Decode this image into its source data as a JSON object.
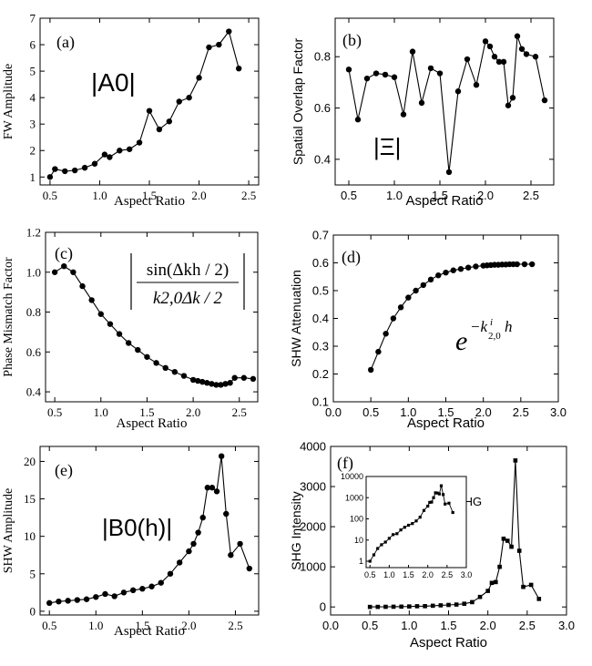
{
  "chart_data": [
    {
      "type": "line",
      "panel_label": "(a)",
      "annotation": "|A0|",
      "xlabel": "Aspect Ratio",
      "ylabel": "FW Amplitude",
      "xlim": [
        0.4,
        2.6
      ],
      "ylim": [
        0.7,
        7
      ],
      "xticks": [
        0.5,
        1.0,
        1.5,
        2.0,
        2.5
      ],
      "xtick_labels": [
        "0.5",
        "1.0",
        "1.5",
        "2.0",
        "2.5"
      ],
      "yticks": [
        1,
        2,
        3,
        4,
        5,
        6,
        7
      ],
      "ytick_labels": [
        "1",
        "2",
        "3",
        "4",
        "5",
        "6",
        "7"
      ],
      "marker": "circle",
      "series": [
        {
          "x": [
            0.5,
            0.55,
            0.65,
            0.75,
            0.85,
            0.95,
            1.05,
            1.1,
            1.2,
            1.3,
            1.4,
            1.5,
            1.6,
            1.7,
            1.8,
            1.9,
            2.0,
            2.1,
            2.2,
            2.3,
            2.4
          ],
          "y": [
            1.0,
            1.3,
            1.22,
            1.25,
            1.35,
            1.5,
            1.85,
            1.75,
            2.0,
            2.05,
            2.3,
            3.5,
            2.8,
            3.1,
            3.85,
            4.0,
            4.75,
            5.9,
            6.0,
            6.5,
            5.1
          ]
        }
      ]
    },
    {
      "type": "line",
      "panel_label": "(b)",
      "annotation": "|Ξ|",
      "xlabel": "Aspect Ratio",
      "ylabel": "Spatial Overlap Factor",
      "xlim": [
        0.35,
        2.75
      ],
      "ylim": [
        0.3,
        0.95
      ],
      "xticks": [
        0.5,
        1.0,
        1.5,
        2.0,
        2.5
      ],
      "xtick_labels": [
        "0.5",
        "1.0",
        "1.5",
        "2.0",
        "2.5"
      ],
      "yticks": [
        0.4,
        0.6,
        0.8
      ],
      "ytick_labels": [
        "0.4",
        "0.6",
        "0.8"
      ],
      "marker": "circle",
      "series": [
        {
          "x": [
            0.5,
            0.6,
            0.7,
            0.8,
            0.9,
            1.0,
            1.1,
            1.2,
            1.3,
            1.4,
            1.5,
            1.6,
            1.7,
            1.8,
            1.9,
            2.0,
            2.05,
            2.1,
            2.15,
            2.2,
            2.25,
            2.3,
            2.35,
            2.4,
            2.45,
            2.55,
            2.65
          ],
          "y": [
            0.75,
            0.555,
            0.715,
            0.735,
            0.73,
            0.72,
            0.575,
            0.82,
            0.62,
            0.755,
            0.735,
            0.35,
            0.665,
            0.79,
            0.69,
            0.86,
            0.84,
            0.8,
            0.78,
            0.78,
            0.61,
            0.64,
            0.88,
            0.83,
            0.81,
            0.8,
            0.63
          ]
        }
      ]
    },
    {
      "type": "line",
      "panel_label": "(c)",
      "annotation": "|sin(Δkh/2) / (k2,0Δk/2)|",
      "annotation_numerator": "sin(Δkh / 2)",
      "annotation_denominator": "k2,0Δk / 2",
      "xlabel": "Aspect Ratio",
      "ylabel": "Phase Mismatch Factor",
      "xlim": [
        0.4,
        2.7
      ],
      "ylim": [
        0.35,
        1.2
      ],
      "xticks": [
        0.5,
        1.0,
        1.5,
        2.0,
        2.5
      ],
      "xtick_labels": [
        "0.5",
        "1.0",
        "1.5",
        "2.0",
        "2.5"
      ],
      "yticks": [
        0.4,
        0.6,
        0.8,
        1.0,
        1.2
      ],
      "ytick_labels": [
        "0.4",
        "0.6",
        "0.8",
        "1.0",
        "1.2"
      ],
      "marker": "circle",
      "series": [
        {
          "x": [
            0.5,
            0.6,
            0.7,
            0.8,
            0.9,
            1.0,
            1.1,
            1.2,
            1.3,
            1.4,
            1.5,
            1.6,
            1.7,
            1.8,
            1.9,
            2.0,
            2.05,
            2.1,
            2.15,
            2.2,
            2.25,
            2.3,
            2.35,
            2.4,
            2.45,
            2.55,
            2.65
          ],
          "y": [
            1.0,
            1.03,
            1.0,
            0.93,
            0.86,
            0.79,
            0.74,
            0.69,
            0.645,
            0.61,
            0.575,
            0.545,
            0.52,
            0.5,
            0.48,
            0.46,
            0.455,
            0.45,
            0.445,
            0.44,
            0.435,
            0.435,
            0.44,
            0.445,
            0.47,
            0.47,
            0.465
          ]
        }
      ]
    },
    {
      "type": "line",
      "panel_label": "(d)",
      "annotation": "e^(-k^i_2,0 h)",
      "xlabel": "Aspect Ratio",
      "ylabel": "SHW Attenuation",
      "xlim": [
        0.0,
        3.0
      ],
      "ylim": [
        0.1,
        0.7
      ],
      "xticks": [
        0.0,
        0.5,
        1.0,
        1.5,
        2.0,
        2.5,
        3.0
      ],
      "xtick_labels": [
        "0.0",
        "0.5",
        "1.0",
        "1.5",
        "2.0",
        "2.5",
        "3.0"
      ],
      "yticks": [
        0.1,
        0.2,
        0.3,
        0.4,
        0.5,
        0.6,
        0.7
      ],
      "ytick_labels": [
        "0.1",
        "0.2",
        "0.3",
        "0.4",
        "0.5",
        "0.6",
        "0.7"
      ],
      "marker": "circle",
      "series": [
        {
          "x": [
            0.5,
            0.6,
            0.7,
            0.8,
            0.9,
            1.0,
            1.1,
            1.2,
            1.3,
            1.4,
            1.5,
            1.6,
            1.7,
            1.8,
            1.9,
            2.0,
            2.05,
            2.1,
            2.15,
            2.2,
            2.25,
            2.3,
            2.35,
            2.4,
            2.45,
            2.55,
            2.65
          ],
          "y": [
            0.215,
            0.28,
            0.345,
            0.4,
            0.44,
            0.475,
            0.5,
            0.52,
            0.54,
            0.555,
            0.565,
            0.573,
            0.578,
            0.583,
            0.587,
            0.59,
            0.591,
            0.592,
            0.593,
            0.593,
            0.594,
            0.594,
            0.595,
            0.595,
            0.595,
            0.595,
            0.595
          ]
        }
      ]
    },
    {
      "type": "line",
      "panel_label": "(e)",
      "annotation": "|B0(h)|",
      "xlabel": "Aspect Ratio",
      "ylabel": "SHW Amplitude",
      "xlim": [
        0.4,
        2.75
      ],
      "ylim": [
        -0.5,
        22
      ],
      "xticks": [
        0.5,
        1.0,
        1.5,
        2.0,
        2.5
      ],
      "xtick_labels": [
        "0.5",
        "1.0",
        "1.5",
        "2.0",
        "2.5"
      ],
      "yticks": [
        0,
        5,
        10,
        15,
        20
      ],
      "ytick_labels": [
        "0",
        "5",
        "10",
        "15",
        "20"
      ],
      "marker": "circle",
      "series": [
        {
          "x": [
            0.5,
            0.6,
            0.7,
            0.8,
            0.9,
            1.0,
            1.1,
            1.2,
            1.3,
            1.4,
            1.5,
            1.6,
            1.7,
            1.8,
            1.9,
            2.0,
            2.05,
            2.1,
            2.15,
            2.2,
            2.25,
            2.3,
            2.35,
            2.4,
            2.45,
            2.55,
            2.65
          ],
          "y": [
            1.1,
            1.3,
            1.4,
            1.5,
            1.6,
            1.9,
            2.3,
            2.0,
            2.5,
            2.8,
            3.0,
            3.3,
            3.8,
            5.0,
            6.5,
            8.0,
            9.0,
            10.5,
            12.5,
            16.5,
            16.5,
            16.0,
            20.7,
            13.0,
            7.5,
            9.0,
            5.7
          ]
        }
      ]
    },
    {
      "type": "line",
      "panel_label": "(f)",
      "annotation": "I_SHG",
      "xlabel": "Aspect Ratio",
      "ylabel": "SHG Intensity",
      "xlim": [
        0.0,
        3.0
      ],
      "ylim": [
        -200,
        4000
      ],
      "xticks": [
        0.0,
        0.5,
        1.0,
        1.5,
        2.0,
        2.5,
        3.0
      ],
      "xtick_labels": [
        "0.0",
        "0.5",
        "1.0",
        "1.5",
        "2.0",
        "2.5",
        "3.0"
      ],
      "yticks": [
        0,
        1000,
        2000,
        3000,
        4000
      ],
      "ytick_labels": [
        "0",
        "1000",
        "2000",
        "3000",
        "4000"
      ],
      "marker": "square",
      "series": [
        {
          "x": [
            0.5,
            0.6,
            0.7,
            0.8,
            0.9,
            1.0,
            1.1,
            1.2,
            1.3,
            1.4,
            1.5,
            1.6,
            1.7,
            1.8,
            1.9,
            2.0,
            2.05,
            2.1,
            2.15,
            2.2,
            2.25,
            2.3,
            2.35,
            2.4,
            2.45,
            2.55,
            2.65
          ],
          "y": [
            1,
            2,
            4,
            6,
            8,
            12,
            18,
            20,
            30,
            40,
            50,
            60,
            80,
            120,
            250,
            400,
            600,
            620,
            1000,
            1700,
            1650,
            1500,
            3650,
            1400,
            500,
            550,
            200
          ]
        }
      ],
      "inset": {
        "type": "line",
        "xscale": "linear",
        "yscale": "log",
        "xlim": [
          0.4,
          3.0
        ],
        "ylim": [
          0.5,
          10000
        ],
        "xticks": [
          0.5,
          1.0,
          1.5,
          2.0,
          2.5,
          3.0
        ],
        "xtick_labels": [
          "0.5",
          "1.0",
          "1.5",
          "2.0",
          "2.5",
          "3.0"
        ],
        "yticks": [
          1,
          10,
          100,
          1000,
          10000
        ],
        "ytick_labels": [
          "1",
          "10",
          "100",
          "1000",
          "10000"
        ],
        "marker": "square",
        "series": [
          {
            "x": [
              0.5,
              0.6,
              0.7,
              0.8,
              0.9,
              1.0,
              1.1,
              1.2,
              1.3,
              1.4,
              1.5,
              1.6,
              1.7,
              1.8,
              1.9,
              2.0,
              2.05,
              2.1,
              2.15,
              2.2,
              2.25,
              2.3,
              2.35,
              2.4,
              2.45,
              2.55,
              2.65
            ],
            "y": [
              1,
              2,
              4,
              6,
              8,
              12,
              18,
              20,
              30,
              40,
              50,
              60,
              80,
              120,
              250,
              400,
              600,
              620,
              1000,
              1700,
              1650,
              1500,
              3650,
              1400,
              500,
              550,
              200
            ]
          }
        ]
      }
    }
  ]
}
